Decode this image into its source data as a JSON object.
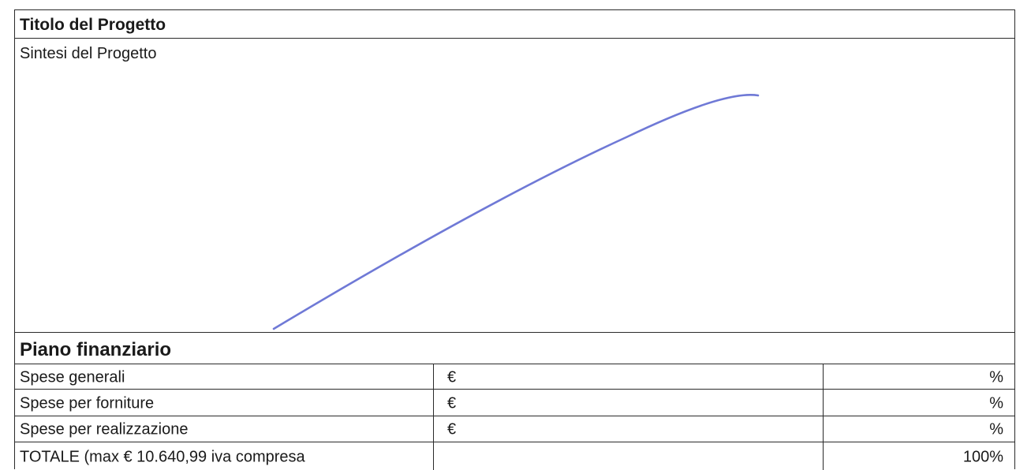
{
  "project": {
    "title_label": "Titolo del Progetto",
    "summary_label": "Sintesi del Progetto"
  },
  "finance": {
    "heading": "Piano finanziario",
    "rows": [
      {
        "label": "Spese generali",
        "currency": "€",
        "percent": "%"
      },
      {
        "label": "Spese per forniture",
        "currency": "€",
        "percent": "%"
      },
      {
        "label": "Spese per realizzazione",
        "currency": "€",
        "percent": "%"
      }
    ],
    "total": {
      "label": "TOTALE (max € 10.640,99 iva compresa",
      "currency": "",
      "percent": "100%"
    }
  },
  "colors": {
    "ink": "#1a1a1a",
    "border": "#2a2a2a",
    "pen_stroke": "#6f79d6"
  }
}
